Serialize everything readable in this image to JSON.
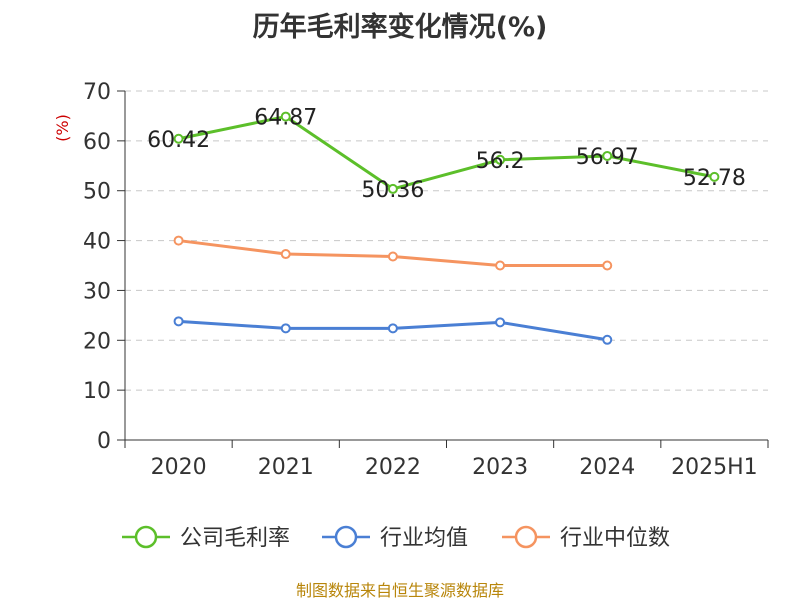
{
  "chart_data": {
    "type": "line",
    "title": "历年毛利率变化情况(%)",
    "ylabel": "(%)",
    "ylim": [
      0,
      70
    ],
    "yticks": [
      0,
      10,
      20,
      30,
      40,
      50,
      60,
      70
    ],
    "categories": [
      "2020",
      "2021",
      "2022",
      "2023",
      "2024",
      "2025H1"
    ],
    "grid": true,
    "legend_position": "bottom",
    "series": [
      {
        "name": "公司毛利率",
        "color": "#5cbf2a",
        "values": [
          60.42,
          64.87,
          50.36,
          56.2,
          56.97,
          52.78
        ],
        "labels": [
          "60.42",
          "64.87",
          "50.36",
          "56.2",
          "56.97",
          "52.78"
        ]
      },
      {
        "name": "行业均值",
        "color": "#4a7fd4",
        "values": [
          23.8,
          22.4,
          22.4,
          23.6,
          20.1,
          null
        ]
      },
      {
        "name": "行业中位数",
        "color": "#f59460",
        "values": [
          40.0,
          37.3,
          36.8,
          35.0,
          35.0,
          null
        ]
      }
    ]
  },
  "source": "制图数据来自恒生聚源数据库"
}
